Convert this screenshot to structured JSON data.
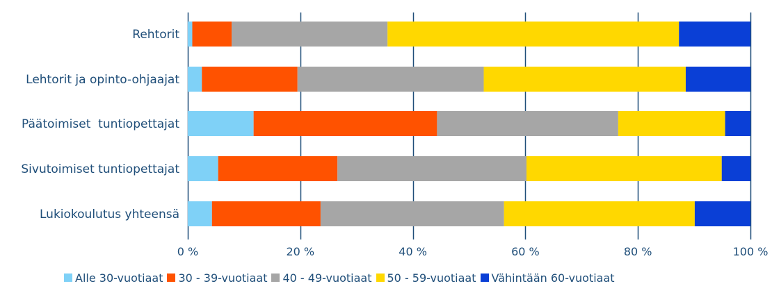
{
  "chart_data": {
    "type": "bar",
    "orientation": "horizontal",
    "stacked": true,
    "categories": [
      "Rehtorit",
      "Lehtorit ja opinto-ohjaajat",
      "Päätoimiset  tuntiopettajat",
      "Sivutoimiset tuntiopettajat",
      "Lukiokoulutus yhteensä"
    ],
    "series": [
      {
        "name": "Alle 30-vuotiaat",
        "color": "#7fd1f7",
        "values": [
          0.8,
          2.5,
          11.7,
          5.4,
          4.3
        ]
      },
      {
        "name": "30 - 39-vuotiaat",
        "color": "#ff5200",
        "values": [
          7.0,
          17.0,
          32.6,
          21.2,
          19.3
        ]
      },
      {
        "name": "40 - 49-vuotiaat",
        "color": "#a6a6a6",
        "values": [
          27.7,
          33.1,
          32.2,
          33.6,
          32.6
        ]
      },
      {
        "name": "50 - 59-vuotiaat",
        "color": "#ffd800",
        "values": [
          51.8,
          35.9,
          19.0,
          34.7,
          33.9
        ]
      },
      {
        "name": "Vähintään 60-vuotiaat",
        "color": "#0a3fd6",
        "values": [
          12.7,
          11.5,
          4.5,
          5.1,
          9.9
        ]
      }
    ],
    "xlim": [
      0,
      100
    ],
    "xticks": [
      "0 %",
      "20 %",
      "40 %",
      "60 %",
      "80 %",
      "100 %"
    ],
    "grid": true,
    "legend_position": "bottom"
  }
}
